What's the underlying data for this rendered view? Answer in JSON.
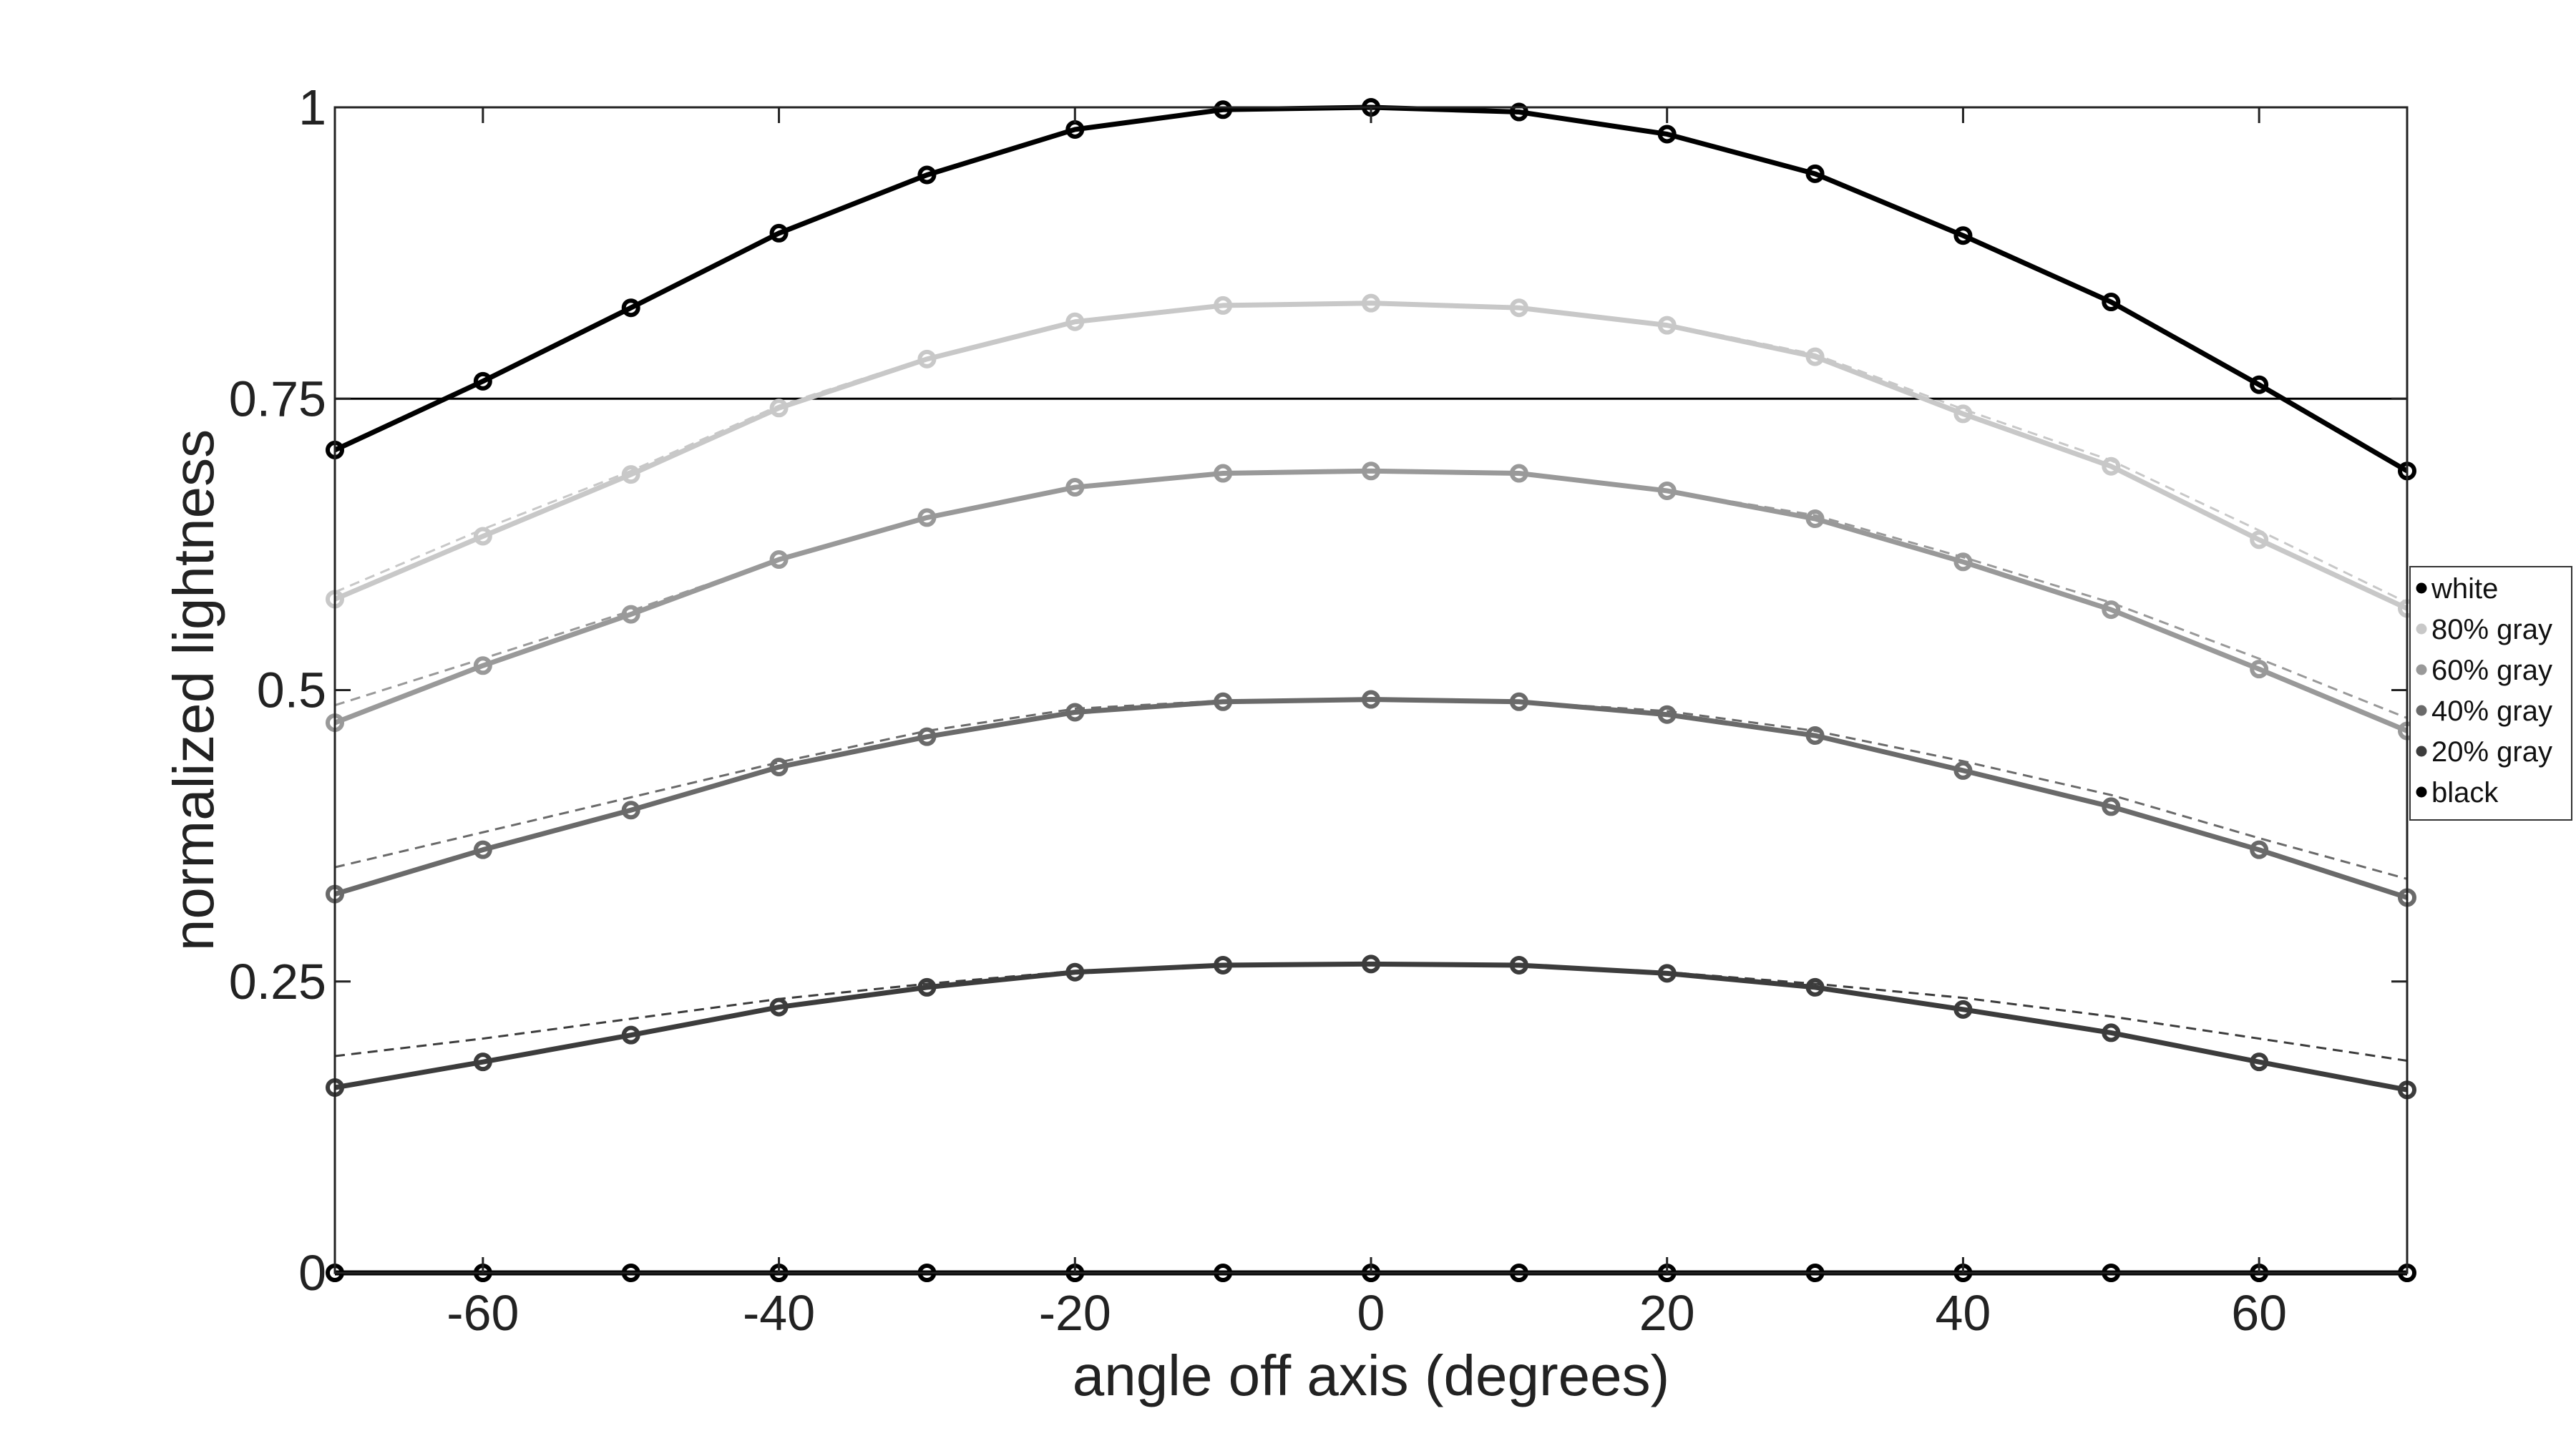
{
  "chart_data": {
    "type": "line",
    "xlabel": "angle off axis (degrees)",
    "ylabel": "normalized lightness",
    "xlim": [
      -70,
      70
    ],
    "ylim": [
      0,
      1
    ],
    "xticks": [
      -60,
      -40,
      -20,
      0,
      20,
      40,
      60
    ],
    "xtick_labels": [
      "-60",
      "-40",
      "-20",
      "0",
      "20",
      "40",
      "60"
    ],
    "yticks": [
      0,
      0.25,
      0.5,
      0.75,
      1
    ],
    "ytick_labels": [
      "0",
      "0.25",
      "0.5",
      "0.75",
      "1"
    ],
    "reference_line": 0.75,
    "grid": false,
    "legend_position": "right",
    "x": [
      -70,
      -60,
      -50,
      -40,
      -30,
      -20,
      -10,
      0,
      10,
      20,
      30,
      40,
      50,
      60,
      70
    ],
    "series": [
      {
        "name": "white",
        "color": "#000000",
        "values": [
          0.706,
          0.765,
          0.828,
          0.892,
          0.942,
          0.981,
          0.998,
          1.0,
          0.996,
          0.977,
          0.943,
          0.89,
          0.833,
          0.762,
          0.688
        ]
      },
      {
        "name": "80% gray",
        "color": "#c8c8c8",
        "values": [
          0.578,
          0.632,
          0.685,
          0.742,
          0.784,
          0.816,
          0.83,
          0.832,
          0.828,
          0.813,
          0.786,
          0.737,
          0.692,
          0.629,
          0.57
        ],
        "reference": [
          0.584,
          0.638,
          0.688,
          0.744,
          0.785,
          0.816,
          0.83,
          0.832,
          0.828,
          0.814,
          0.788,
          0.741,
          0.697,
          0.637,
          0.575
        ]
      },
      {
        "name": "60% gray",
        "color": "#999999",
        "values": [
          0.472,
          0.521,
          0.565,
          0.612,
          0.648,
          0.674,
          0.686,
          0.688,
          0.686,
          0.671,
          0.647,
          0.61,
          0.569,
          0.518,
          0.465
        ],
        "reference": [
          0.487,
          0.527,
          0.568,
          0.612,
          0.648,
          0.674,
          0.686,
          0.688,
          0.686,
          0.671,
          0.65,
          0.614,
          0.575,
          0.527,
          0.476
        ]
      },
      {
        "name": "40% gray",
        "color": "#6a6a6a",
        "values": [
          0.325,
          0.363,
          0.397,
          0.434,
          0.46,
          0.481,
          0.49,
          0.492,
          0.49,
          0.479,
          0.461,
          0.431,
          0.4,
          0.363,
          0.322
        ],
        "reference": [
          0.348,
          0.378,
          0.408,
          0.438,
          0.465,
          0.484,
          0.491,
          0.492,
          0.49,
          0.482,
          0.465,
          0.439,
          0.41,
          0.373,
          0.338
        ]
      },
      {
        "name": "20% gray",
        "color": "#3c3c3c",
        "values": [
          0.159,
          0.181,
          0.204,
          0.228,
          0.245,
          0.258,
          0.264,
          0.265,
          0.264,
          0.257,
          0.245,
          0.226,
          0.206,
          0.181,
          0.157
        ],
        "reference": [
          0.186,
          0.201,
          0.218,
          0.235,
          0.248,
          0.259,
          0.264,
          0.265,
          0.264,
          0.258,
          0.248,
          0.236,
          0.22,
          0.201,
          0.182
        ]
      },
      {
        "name": "black",
        "color": "#000000",
        "values": [
          0,
          0,
          0,
          0,
          0,
          0,
          0,
          0,
          0,
          0,
          0,
          0,
          0,
          0,
          0
        ]
      }
    ]
  }
}
